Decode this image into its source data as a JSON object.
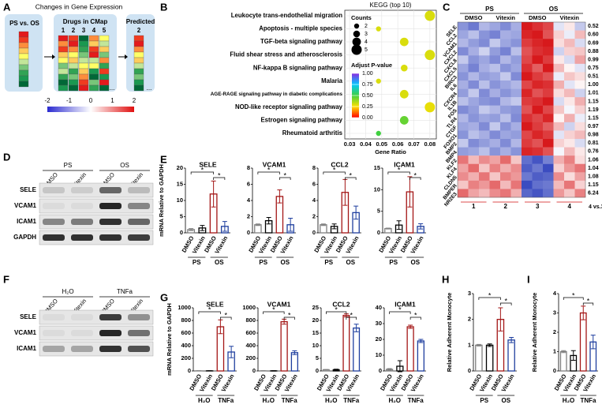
{
  "panel_labels": [
    "A",
    "B",
    "C",
    "D",
    "E",
    "F",
    "G",
    "H",
    "I"
  ],
  "cmap": {
    "title": "Changes in Gene Expression",
    "query": "PS vs. OS",
    "drugs": "Drugs in CMap",
    "drug_numbers": [
      "1",
      "2",
      "3",
      "4",
      "5"
    ],
    "ellipsis": "...",
    "predicted": "Predicted",
    "predicted_number": "2",
    "colorbar_ticks": [
      -2,
      -1,
      0,
      1,
      2
    ]
  },
  "blots": [
    {
      "groups": [
        "PS",
        "OS"
      ],
      "lanes": [
        "DMSO",
        "Vitexin",
        "DMSO",
        "Vitexin"
      ],
      "proteins": [
        "SELE",
        "VCAM1",
        "ICAM1",
        "GAPDH"
      ]
    },
    {
      "groups": [
        "H₂O",
        "TNFa"
      ],
      "lanes": [
        "DMSO",
        "Vitexin",
        "DMSO",
        "Vitexin"
      ],
      "proteins": [
        "SELE",
        "VCAM1",
        "ICAM1"
      ]
    }
  ],
  "chart_data": [
    {
      "type": "dot",
      "title": "KEGG (top 10)",
      "categories": [
        "Leukocyte trans-endothelial migration",
        "Apoptosis - multiple species",
        "TGF-beta signaling pathway",
        "Fluid shear stress and atherosclerosis",
        "NF-kappa B signaling pathway",
        "Malaria",
        "AGE-RAGE signaling pathway in diabetic complications",
        "NOD-like receptor signaling pathway",
        "Estrogen signaling pathway",
        "Rheumatoid arthritis"
      ],
      "x": [
        0.08,
        0.048,
        0.064,
        0.08,
        0.064,
        0.048,
        0.064,
        0.08,
        0.064,
        0.048
      ],
      "sizes": [
        5,
        2,
        4,
        5,
        3,
        2,
        4,
        5,
        4,
        2
      ],
      "padj": [
        0.3,
        0.3,
        0.3,
        0.3,
        0.3,
        0.3,
        0.3,
        0.28,
        0.45,
        0.5
      ],
      "xlabel": "Gene Ratio",
      "xlim": [
        0.027,
        0.084
      ],
      "xticks": [
        0.03,
        0.04,
        0.05,
        0.06,
        0.07,
        0.08
      ],
      "size_title": "Counts",
      "size_ticks": [
        2,
        3,
        4,
        5
      ],
      "color_title": "Adjust P-value",
      "color_ticks": [
        {
          "value": 1,
          "label": "1.00"
        },
        {
          "value": 0.75,
          "label": "0.75"
        },
        {
          "value": 0.5,
          "label": "0.50"
        },
        {
          "value": 0.25,
          "label": "0.25"
        },
        {
          "value": 0,
          "label": "0.00"
        }
      ],
      "grid": true
    },
    {
      "type": "heatmap",
      "col_groups": [
        "PS",
        "OS"
      ],
      "columns": [
        "DMSO",
        "Vitexin",
        "DMSO",
        "Vitexin"
      ],
      "rows": [
        "SELE",
        "CCL2",
        "VCAM1",
        "CXCL2",
        "CXCL8",
        "CXCL5",
        "BIRC3",
        "IL6",
        "CXCR4",
        "IL1B",
        "FOS",
        "TLR4",
        "CTGF",
        "FOXO1",
        "BMP2",
        "BMP4",
        "KLF2",
        "KLF4",
        "CLDN5",
        "BMPER",
        "NR2E3"
      ],
      "row_labels": [
        "0.52",
        "0.60",
        "0.69",
        "0.88",
        "0.99",
        "0.75",
        "0.51",
        "1.00",
        "1.01",
        "1.15",
        "1.19",
        "1.15",
        "0.97",
        "0.98",
        "0.81",
        "0.76",
        "1.06",
        "1.04",
        "1.08",
        "1.15",
        "6.24"
      ],
      "col_numbers": [
        "1",
        "2",
        "3",
        "4"
      ],
      "comparison": "4 vs.3",
      "values": [
        [
          -1.2,
          -1.5,
          -0.8,
          -1,
          -1.3,
          -0.9,
          2,
          1.8,
          1.6,
          -0.3,
          0.2,
          -0.6
        ],
        [
          -1,
          -0.7,
          -1.2,
          -1.4,
          -0.9,
          -1,
          1.9,
          2,
          1.5,
          0.4,
          -0.2,
          0.6
        ],
        [
          -0.8,
          -1.1,
          -1.3,
          -0.6,
          -1,
          -1.2,
          1.7,
          1.9,
          2,
          0.3,
          0.6,
          -0.4
        ],
        [
          -1.3,
          -0.9,
          -0.5,
          -1.1,
          -1.4,
          -0.7,
          1.5,
          1.8,
          1.9,
          -0.5,
          0.4,
          0.5
        ],
        [
          -0.6,
          -1.2,
          -1,
          -1.3,
          -0.8,
          -1.1,
          1.6,
          2,
          1.7,
          0.2,
          -0.4,
          0.8
        ],
        [
          -1,
          -1.4,
          -0.9,
          -0.7,
          -1.2,
          -1,
          1.8,
          1.4,
          2,
          0.6,
          0.1,
          -0.3
        ],
        [
          -1.2,
          -0.8,
          -1.1,
          -1,
          -0.6,
          -1.3,
          2,
          1.7,
          1.5,
          -0.2,
          0.5,
          0.3
        ],
        [
          -0.9,
          -1.3,
          -0.7,
          -1.2,
          -1,
          -0.8,
          1.6,
          1.9,
          1.8,
          0.7,
          -0.3,
          0.1
        ],
        [
          -1.1,
          -0.6,
          -1.3,
          -0.9,
          -1.2,
          -1,
          1.9,
          1.5,
          1.7,
          0.3,
          0.6,
          -0.5
        ],
        [
          -0.7,
          -1,
          -1.2,
          -1.3,
          -0.8,
          -0.6,
          1.7,
          1.8,
          2,
          -0.4,
          0.2,
          0.7
        ],
        [
          -1.3,
          -1.1,
          -0.6,
          -0.8,
          -1.1,
          -1.2,
          1.5,
          2,
          1.6,
          0.5,
          -0.1,
          0.4
        ],
        [
          -0.8,
          -1.2,
          -1,
          -1.1,
          -0.7,
          -1.3,
          1.8,
          1.6,
          1.9,
          0.1,
          0.7,
          -0.2
        ],
        [
          -1,
          -0.9,
          -1.3,
          -0.6,
          -1.2,
          -0.9,
          2,
          1.7,
          1.4,
          0.6,
          -0.5,
          0.3
        ],
        [
          -1.2,
          -0.7,
          -0.9,
          -1.3,
          -1,
          -1.1,
          1.6,
          1.9,
          1.7,
          -0.3,
          0.4,
          0.6
        ],
        [
          -0.6,
          -1.3,
          -1.1,
          -0.9,
          -1.3,
          -0.8,
          1.7,
          1.5,
          2,
          0.4,
          0.2,
          -0.4
        ],
        [
          -1.1,
          -1,
          -0.7,
          -1.2,
          -0.9,
          -1.2,
          1.9,
          1.8,
          1.5,
          -0.1,
          0.6,
          0.2
        ],
        [
          1.2,
          0.6,
          1,
          0.8,
          1.3,
          0.5,
          -1.6,
          -1.9,
          -1.4,
          0.7,
          1.1,
          0.3
        ],
        [
          0.8,
          1.3,
          0.5,
          1.1,
          0.7,
          1,
          -1.8,
          -1.5,
          -2,
          0.4,
          0.9,
          1.2
        ],
        [
          1,
          0.7,
          1.2,
          0.5,
          1.1,
          0.9,
          -1.5,
          -1.8,
          -1.7,
          1,
          0.3,
          0.8
        ],
        [
          0.5,
          1.1,
          0.9,
          1.3,
          0.6,
          1.2,
          -2,
          -1.6,
          -1.5,
          0.6,
          1.2,
          0.4
        ],
        [
          1.3,
          0.8,
          0.6,
          1,
          1.2,
          0.7,
          -1.7,
          -1.9,
          -1.6,
          0.9,
          0.5,
          1.1
        ]
      ]
    },
    {
      "type": "bar",
      "title": "SELE",
      "ylabel": "mRNA Relative to GAPDH",
      "categories": [
        "DMSO",
        "Vitexin",
        "DMSO",
        "Vitexin"
      ],
      "groups": [
        "PS",
        "OS"
      ],
      "values": [
        1,
        1.5,
        12,
        2
      ],
      "errors": [
        0.3,
        0.8,
        4,
        1.5
      ],
      "colors": [
        "#808080",
        "#000000",
        "#a31515",
        "#1f3f9f"
      ],
      "ylim": [
        0,
        20
      ],
      "yticks": [
        0,
        5,
        10,
        15,
        20
      ],
      "significance": [
        {
          "from": 0,
          "to": 2,
          "label": "*"
        },
        {
          "from": 2,
          "to": 3,
          "label": "*"
        }
      ]
    },
    {
      "type": "bar",
      "title": "VCAM1",
      "categories": [
        "DMSO",
        "Vitexin",
        "DMSO",
        "Vitexin"
      ],
      "groups": [
        "PS",
        "OS"
      ],
      "values": [
        1,
        1.5,
        4.5,
        1
      ],
      "errors": [
        0.1,
        0.4,
        0.8,
        0.8
      ],
      "colors": [
        "#808080",
        "#000000",
        "#a31515",
        "#1f3f9f"
      ],
      "ylim": [
        0,
        8
      ],
      "yticks": [
        0,
        2,
        4,
        6,
        8
      ],
      "significance": [
        {
          "from": 0,
          "to": 2,
          "label": "*"
        },
        {
          "from": 2,
          "to": 3,
          "label": "*"
        }
      ]
    },
    {
      "type": "bar",
      "title": "CCL2",
      "categories": [
        "DMSO",
        "Vitexin",
        "DMSO",
        "Vitexin"
      ],
      "groups": [
        "PS",
        "OS"
      ],
      "values": [
        1,
        0.8,
        5,
        2.5
      ],
      "errors": [
        0.1,
        0.3,
        1.6,
        0.8
      ],
      "colors": [
        "#808080",
        "#000000",
        "#a31515",
        "#1f3f9f"
      ],
      "ylim": [
        0,
        8
      ],
      "yticks": [
        0,
        2,
        4,
        6,
        8
      ],
      "significance": [
        {
          "from": 0,
          "to": 2,
          "label": "*"
        },
        {
          "from": 2,
          "to": 3,
          "label": "*"
        }
      ]
    },
    {
      "type": "bar",
      "title": "ICAM1",
      "categories": [
        "DMSO",
        "Vitexin",
        "DMSO",
        "Vitexin"
      ],
      "groups": [
        "PS",
        "OS"
      ],
      "values": [
        1,
        1.8,
        9.5,
        1.5
      ],
      "errors": [
        0.1,
        1,
        3.5,
        0.6
      ],
      "colors": [
        "#808080",
        "#000000",
        "#a31515",
        "#1f3f9f"
      ],
      "ylim": [
        0,
        15
      ],
      "yticks": [
        0,
        5,
        10,
        15
      ],
      "significance": [
        {
          "from": 0,
          "to": 2,
          "label": "*"
        },
        {
          "from": 2,
          "to": 3,
          "label": "*"
        }
      ]
    },
    {
      "type": "bar",
      "title": "SELE",
      "ylabel": "mRNA Relative to GAPDH",
      "categories": [
        "DMSO",
        "Vitexin",
        "DMSO",
        "Vitexin"
      ],
      "groups": [
        "H₂O",
        "TNFa"
      ],
      "values": [
        2,
        2,
        700,
        300
      ],
      "errors": [
        2,
        2,
        110,
        90
      ],
      "colors": [
        "#808080",
        "#000000",
        "#a31515",
        "#1f3f9f"
      ],
      "ylim": [
        0,
        1000
      ],
      "yticks": [
        0,
        200,
        400,
        600,
        800,
        1000
      ],
      "significance": [
        {
          "from": 0,
          "to": 2,
          "label": "*"
        },
        {
          "from": 2,
          "to": 3,
          "label": "*"
        }
      ]
    },
    {
      "type": "bar",
      "title": "VCAM1",
      "categories": [
        "DMSO",
        "Vitexin",
        "DMSO",
        "Vitexin"
      ],
      "groups": [
        "H₂O",
        "TNFa"
      ],
      "values": [
        2,
        2,
        780,
        290
      ],
      "errors": [
        2,
        3,
        40,
        30
      ],
      "colors": [
        "#808080",
        "#000000",
        "#a31515",
        "#1f3f9f"
      ],
      "ylim": [
        0,
        1000
      ],
      "yticks": [
        0,
        200,
        400,
        600,
        800,
        1000
      ],
      "significance": [
        {
          "from": 0,
          "to": 2,
          "label": "*"
        },
        {
          "from": 2,
          "to": 3,
          "label": "*"
        }
      ]
    },
    {
      "type": "bar",
      "title": "CCL2",
      "categories": [
        "DMSO",
        "Vitexin",
        "DMSO",
        "Vitexin"
      ],
      "groups": [
        "H₂O",
        "TNFa"
      ],
      "values": [
        0.5,
        0.5,
        22,
        17
      ],
      "errors": [
        0.1,
        0.2,
        0.6,
        1.5
      ],
      "colors": [
        "#808080",
        "#000000",
        "#a31515",
        "#1f3f9f"
      ],
      "ylim": [
        0,
        25
      ],
      "yticks": [
        0,
        5,
        10,
        15,
        20,
        25
      ],
      "significance": [
        {
          "from": 0,
          "to": 2,
          "label": "*"
        },
        {
          "from": 2,
          "to": 3,
          "label": "*"
        }
      ]
    },
    {
      "type": "bar",
      "title": "ICAM1",
      "categories": [
        "DMSO",
        "Vitexin",
        "DMSO",
        "Vitexin"
      ],
      "groups": [
        "H₂O",
        "TNFa"
      ],
      "values": [
        1,
        3,
        28,
        19
      ],
      "errors": [
        0.5,
        3.5,
        1,
        1
      ],
      "colors": [
        "#808080",
        "#000000",
        "#a31515",
        "#1f3f9f"
      ],
      "ylim": [
        0,
        40
      ],
      "yticks": [
        0,
        10,
        20,
        30,
        40
      ],
      "significance": [
        {
          "from": 0,
          "to": 2,
          "label": "*"
        },
        {
          "from": 2,
          "to": 3,
          "label": "*"
        }
      ]
    },
    {
      "type": "bar",
      "ylabel": "Relative Adherent Monocyte",
      "categories": [
        "DMSO",
        "Vitexin",
        "DMSO",
        "Vitexin"
      ],
      "groups": [
        "PS",
        "OS"
      ],
      "values": [
        1,
        1,
        2,
        1.2
      ],
      "errors": [
        0.03,
        0.05,
        0.45,
        0.1
      ],
      "colors": [
        "#808080",
        "#000000",
        "#a31515",
        "#1f3f9f"
      ],
      "ylim": [
        0,
        3
      ],
      "yticks": [
        0,
        1,
        2,
        3
      ],
      "significance": [
        {
          "from": 0,
          "to": 2,
          "label": "*"
        },
        {
          "from": 2,
          "to": 3,
          "label": "*"
        }
      ]
    },
    {
      "type": "bar",
      "ylabel": "Relative Adherent Monocyte",
      "categories": [
        "DMSO",
        "Vitexin",
        "DMSO",
        "Vitexin"
      ],
      "groups": [
        "H₂O",
        "TNFa"
      ],
      "values": [
        1,
        0.8,
        3,
        1.5
      ],
      "errors": [
        0.05,
        0.25,
        0.35,
        0.35
      ],
      "colors": [
        "#808080",
        "#000000",
        "#a31515",
        "#1f3f9f"
      ],
      "ylim": [
        0,
        4
      ],
      "yticks": [
        0,
        1,
        2,
        3,
        4
      ],
      "significance": [
        {
          "from": 0,
          "to": 2,
          "label": "*"
        },
        {
          "from": 2,
          "to": 3,
          "label": "*"
        }
      ]
    }
  ]
}
